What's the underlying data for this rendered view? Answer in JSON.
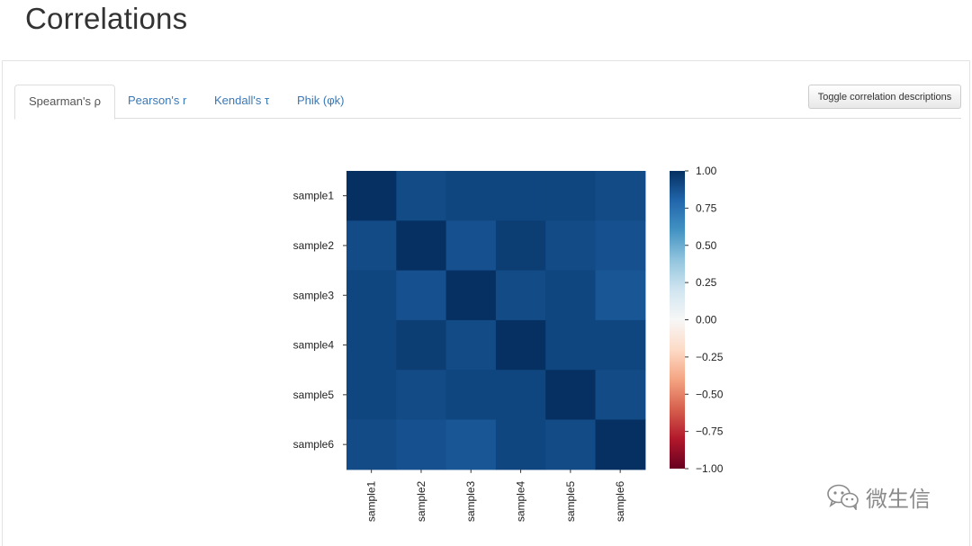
{
  "page": {
    "title": "Correlations"
  },
  "tabs": [
    {
      "label": "Spearman's ρ",
      "active": true
    },
    {
      "label": "Pearson's r",
      "active": false
    },
    {
      "label": "Kendall's τ",
      "active": false
    },
    {
      "label": "Phik (φk)",
      "active": false
    }
  ],
  "toolbar": {
    "toggle_label": "Toggle correlation descriptions"
  },
  "watermark": {
    "text": "微生信",
    "icon": "wechat-icon"
  },
  "colors": {
    "link": "#3a78b5",
    "positive_max": "#08306b",
    "negative_max": "#67001f",
    "zero": "#f7f7f7"
  },
  "chart_data": {
    "type": "heatmap",
    "rows": [
      "sample1",
      "sample2",
      "sample3",
      "sample4",
      "sample5",
      "sample6"
    ],
    "cols": [
      "sample1",
      "sample2",
      "sample3",
      "sample4",
      "sample5",
      "sample6"
    ],
    "values": [
      [
        1.0,
        0.9,
        0.92,
        0.92,
        0.92,
        0.9
      ],
      [
        0.9,
        1.0,
        0.88,
        0.95,
        0.9,
        0.88
      ],
      [
        0.92,
        0.88,
        1.0,
        0.9,
        0.92,
        0.86
      ],
      [
        0.92,
        0.95,
        0.9,
        1.0,
        0.92,
        0.92
      ],
      [
        0.92,
        0.9,
        0.92,
        0.92,
        1.0,
        0.9
      ],
      [
        0.9,
        0.88,
        0.86,
        0.92,
        0.9,
        1.0
      ]
    ],
    "colorbar": {
      "range": [
        -1,
        1
      ],
      "ticks": [
        1.0,
        0.75,
        0.5,
        0.25,
        0.0,
        -0.25,
        -0.5,
        -0.75,
        -1.0
      ],
      "tick_labels": [
        "1.00",
        "0.75",
        "0.50",
        "0.25",
        "0.00",
        "−0.25",
        "−0.50",
        "−0.75",
        "−1.00"
      ]
    }
  }
}
